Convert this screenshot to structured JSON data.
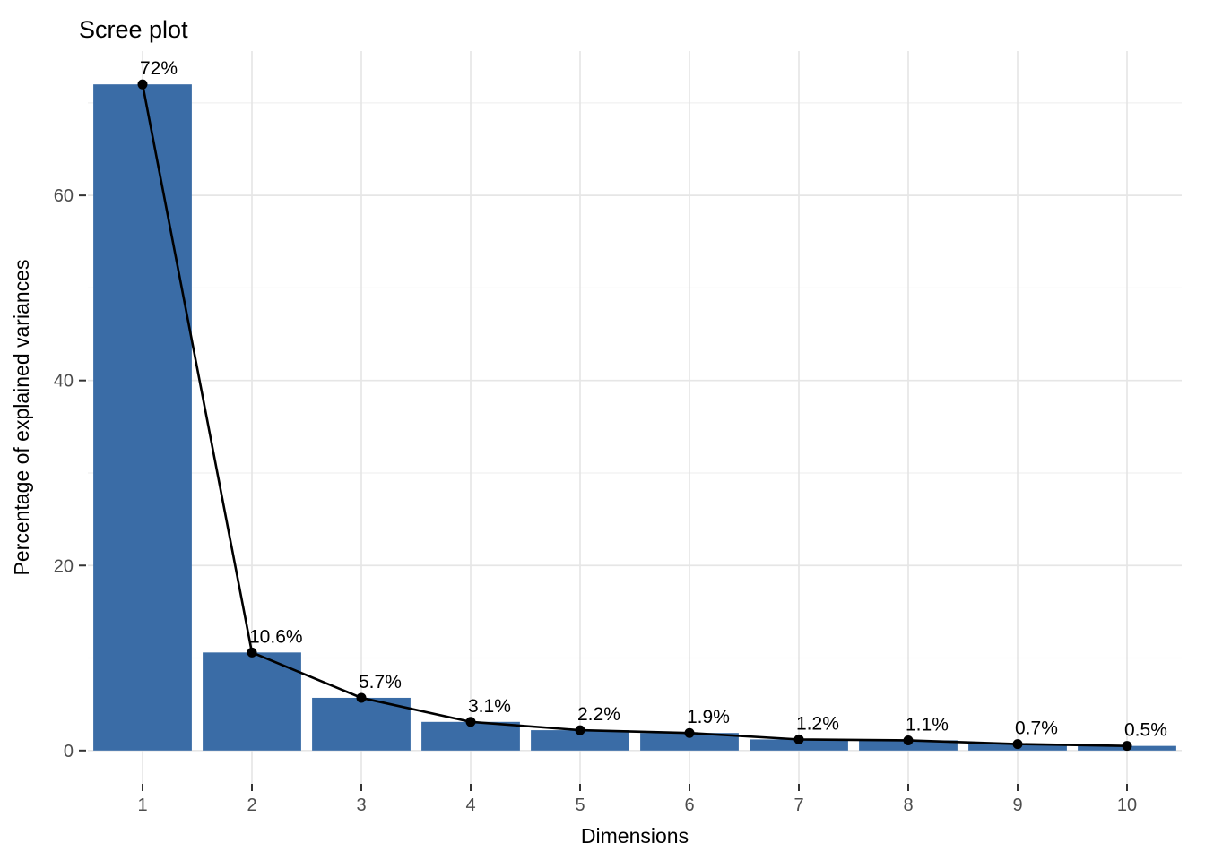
{
  "chart_data": {
    "type": "bar",
    "overlay": "line-with-points",
    "title": "Scree plot",
    "xlabel": "Dimensions",
    "ylabel": "Percentage of explained variances",
    "categories": [
      "1",
      "2",
      "3",
      "4",
      "5",
      "6",
      "7",
      "8",
      "9",
      "10"
    ],
    "values": [
      72,
      10.6,
      5.7,
      3.1,
      2.2,
      1.9,
      1.2,
      1.1,
      0.7,
      0.5
    ],
    "point_labels": [
      "72%",
      "10.6%",
      "5.7%",
      "3.1%",
      "2.2%",
      "1.9%",
      "1.2%",
      "1.1%",
      "0.7%",
      "0.5%"
    ],
    "y_ticks": [
      0,
      20,
      40,
      60
    ],
    "y_minor_ticks": [
      10,
      30,
      50,
      70
    ],
    "ylim": [
      -3.6,
      75.6
    ],
    "bar_rel_width": 0.9,
    "grid": true,
    "legend": false,
    "colors": {
      "bar_fill": "#3a6ca6",
      "line": "#000000",
      "point": "#000000",
      "grid_major": "#e6e6e6",
      "grid_minor": "#f1f1f1",
      "tick_mark": "#333333",
      "tick_label": "#4d4d4d",
      "title": "#000000",
      "axis_title": "#000000",
      "background": "#ffffff"
    }
  }
}
